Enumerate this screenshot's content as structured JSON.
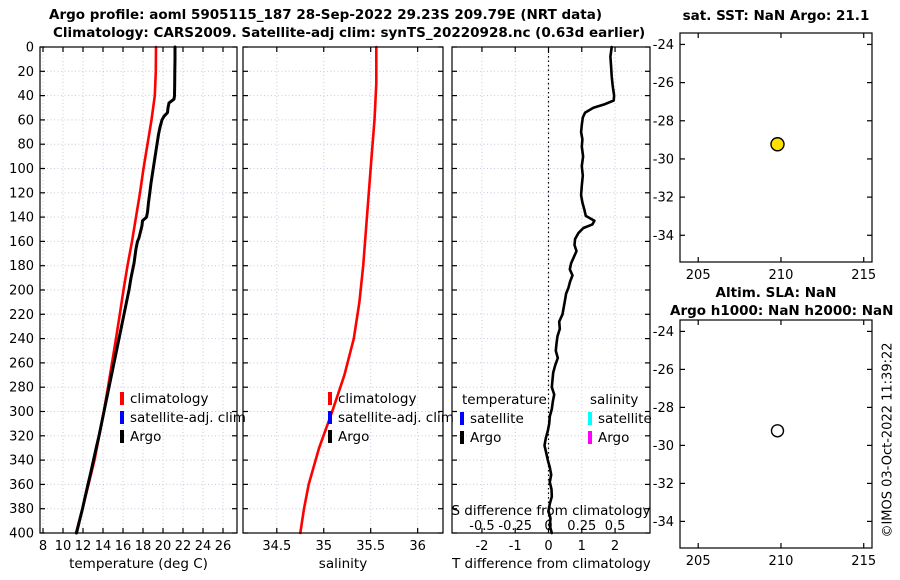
{
  "header": {
    "line1": "Argo profile: aoml 5905115_187 28-Sep-2022 29.23S 209.79E (NRT data)",
    "line2": "Climatology: CARS2009. Satellite-adj clim: synTS_20220928.nc (0.63d earlier)"
  },
  "watermark": "©IMOS 03-Oct-2022 11:39:22",
  "colors": {
    "climatology": "#ff0000",
    "satellite": "#0000ff",
    "argo": "#000000",
    "satellite_salinity": "#00ffff",
    "argo_salinity": "#ff00ff",
    "grid": "#c8c8dc",
    "sst_marker_fill": "#ffe100",
    "sla_marker_fill": "#ffffff"
  },
  "legends": {
    "profile": {
      "climatology": "climatology",
      "satellite": "satellite-adj. clim",
      "argo": "Argo"
    },
    "difference": {
      "temperature_header": "temperature",
      "salinity_header": "salinity",
      "satellite": "satellite",
      "argo": "Argo"
    }
  },
  "panels": {
    "temperature": {
      "xlabel": "temperature (deg C)"
    },
    "salinity": {
      "xlabel": "salinity"
    },
    "difference": {
      "xlabel": "T difference from climatology",
      "inner_label": "S difference from climatology"
    }
  },
  "maps": {
    "sst": {
      "title": "sat. SST: NaN Argo: 21.1"
    },
    "sla": {
      "title_line1": "Altim. SLA: NaN",
      "title_line2": "Argo h1000: NaN h2000: NaN"
    }
  },
  "chart_data": [
    {
      "id": "temperature_profile",
      "type": "line",
      "xlabel": "temperature (deg C)",
      "ylabel": "depth (dbar)",
      "xlim": [
        7.7,
        27.4
      ],
      "ylim": [
        0,
        400
      ],
      "xticks": [
        8,
        10,
        12,
        14,
        16,
        18,
        20,
        22,
        24,
        26
      ],
      "yticks": [
        0,
        20,
        40,
        60,
        80,
        100,
        120,
        140,
        160,
        180,
        200,
        220,
        240,
        260,
        280,
        300,
        320,
        340,
        360,
        380,
        400
      ],
      "grid": true,
      "series": [
        {
          "id": "climatology-temperature",
          "name": "climatology",
          "color": "#ff0000",
          "width": 2.6,
          "points": [
            [
              0,
              19.3
            ],
            [
              20,
              19.28
            ],
            [
              40,
              19.18
            ],
            [
              60,
              18.85
            ],
            [
              80,
              18.45
            ],
            [
              100,
              18.05
            ],
            [
              120,
              17.7
            ],
            [
              140,
              17.3
            ],
            [
              160,
              16.9
            ],
            [
              180,
              16.45
            ],
            [
              200,
              16.05
            ],
            [
              220,
              15.68
            ],
            [
              240,
              15.3
            ],
            [
              260,
              14.9
            ],
            [
              280,
              14.5
            ],
            [
              300,
              14.08
            ],
            [
              320,
              13.62
            ],
            [
              340,
              13.15
            ],
            [
              360,
              12.55
            ],
            [
              380,
              11.95
            ],
            [
              400,
              11.3
            ]
          ]
        },
        {
          "id": "argo-temperature",
          "name": "Argo",
          "color": "#000000",
          "width": 3,
          "points": [
            [
              0,
              21.2
            ],
            [
              10,
              21.2
            ],
            [
              20,
              21.18
            ],
            [
              30,
              21.17
            ],
            [
              40,
              21.15
            ],
            [
              43,
              21.1
            ],
            [
              46,
              20.6
            ],
            [
              50,
              20.5
            ],
            [
              54,
              20.45
            ],
            [
              57,
              20.1
            ],
            [
              60,
              19.9
            ],
            [
              66,
              19.7
            ],
            [
              72,
              19.55
            ],
            [
              80,
              19.4
            ],
            [
              88,
              19.25
            ],
            [
              96,
              19.1
            ],
            [
              104,
              18.95
            ],
            [
              112,
              18.8
            ],
            [
              120,
              18.68
            ],
            [
              128,
              18.55
            ],
            [
              136,
              18.45
            ],
            [
              140,
              18.35
            ],
            [
              143,
              17.95
            ],
            [
              147,
              17.9
            ],
            [
              152,
              17.75
            ],
            [
              157,
              17.6
            ],
            [
              160,
              17.45
            ],
            [
              166,
              17.3
            ],
            [
              172,
              17.2
            ],
            [
              178,
              17.1
            ],
            [
              184,
              16.95
            ],
            [
              190,
              16.8
            ],
            [
              196,
              16.68
            ],
            [
              200,
              16.6
            ],
            [
              210,
              16.35
            ],
            [
              220,
              16.1
            ],
            [
              230,
              15.85
            ],
            [
              240,
              15.6
            ],
            [
              250,
              15.35
            ],
            [
              260,
              15.1
            ],
            [
              270,
              14.85
            ],
            [
              280,
              14.6
            ],
            [
              290,
              14.35
            ],
            [
              300,
              14.1
            ],
            [
              310,
              13.85
            ],
            [
              320,
              13.6
            ],
            [
              330,
              13.32
            ],
            [
              340,
              13.05
            ],
            [
              350,
              12.78
            ],
            [
              360,
              12.5
            ],
            [
              370,
              12.22
            ],
            [
              380,
              11.95
            ],
            [
              390,
              11.65
            ],
            [
              400,
              11.35
            ]
          ]
        }
      ]
    },
    {
      "id": "salinity_profile",
      "type": "line",
      "xlabel": "salinity",
      "ylabel": "depth (dbar)",
      "xlim": [
        34.14,
        36.27
      ],
      "ylim": [
        0,
        400
      ],
      "xticks": [
        34.5,
        35,
        35.5,
        36
      ],
      "xtick_labels": [
        "34.5",
        "35",
        "35.5",
        "36"
      ],
      "yticks": [
        0,
        20,
        40,
        60,
        80,
        100,
        120,
        140,
        160,
        180,
        200,
        220,
        240,
        260,
        280,
        300,
        320,
        340,
        360,
        380,
        400
      ],
      "grid": true,
      "series": [
        {
          "id": "climatology-salinity",
          "name": "climatology",
          "color": "#ff0000",
          "width": 2.6,
          "points": [
            [
              0,
              35.56
            ],
            [
              30,
              35.56
            ],
            [
              60,
              35.54
            ],
            [
              90,
              35.51
            ],
            [
              120,
              35.48
            ],
            [
              150,
              35.45
            ],
            [
              180,
              35.42
            ],
            [
              210,
              35.38
            ],
            [
              240,
              35.32
            ],
            [
              270,
              35.22
            ],
            [
              300,
              35.09
            ],
            [
              330,
              34.95
            ],
            [
              360,
              34.84
            ],
            [
              380,
              34.79
            ],
            [
              400,
              34.75
            ]
          ]
        }
      ]
    },
    {
      "id": "t_difference",
      "type": "line",
      "xlabel": "T difference from climatology",
      "ylabel": "depth (dbar)",
      "xlim": [
        -2.9,
        3.05
      ],
      "ylim": [
        0,
        400
      ],
      "xticks": [
        -2,
        -1,
        0,
        1,
        2
      ],
      "yticks": [
        0,
        20,
        40,
        60,
        80,
        100,
        120,
        140,
        160,
        180,
        200,
        220,
        240,
        260,
        280,
        300,
        320,
        340,
        360,
        380,
        400
      ],
      "grid": true,
      "zero_line": true,
      "secondary_axis": {
        "label": "S difference from climatology",
        "positions": [
          -2,
          -1,
          0,
          1,
          2
        ],
        "labels": [
          "-0.5",
          "-0.25",
          "0",
          "0.25",
          "0.5"
        ]
      },
      "series": [
        {
          "id": "argo-t-difference",
          "name": "Argo T diff",
          "color": "#000000",
          "width": 2.6,
          "points": [
            [
              0,
              1.9
            ],
            [
              8,
              1.86
            ],
            [
              16,
              1.88
            ],
            [
              24,
              1.9
            ],
            [
              32,
              1.93
            ],
            [
              40,
              1.97
            ],
            [
              44,
              1.96
            ],
            [
              47,
              1.7
            ],
            [
              50,
              1.35
            ],
            [
              54,
              1.1
            ],
            [
              58,
              1.03
            ],
            [
              64,
              1.0
            ],
            [
              70,
              0.98
            ],
            [
              76,
              1.02
            ],
            [
              82,
              1.0
            ],
            [
              90,
              1.04
            ],
            [
              98,
              1.0
            ],
            [
              106,
              1.03
            ],
            [
              114,
              1.0
            ],
            [
              122,
              0.98
            ],
            [
              128,
              1.02
            ],
            [
              134,
              1.08
            ],
            [
              139,
              1.12
            ],
            [
              143,
              1.38
            ],
            [
              146,
              1.32
            ],
            [
              149,
              1.05
            ],
            [
              153,
              0.9
            ],
            [
              158,
              0.8
            ],
            [
              163,
              0.78
            ],
            [
              168,
              0.84
            ],
            [
              173,
              0.76
            ],
            [
              178,
              0.68
            ],
            [
              183,
              0.64
            ],
            [
              188,
              0.72
            ],
            [
              193,
              0.65
            ],
            [
              198,
              0.6
            ],
            [
              203,
              0.53
            ],
            [
              208,
              0.5
            ],
            [
              214,
              0.46
            ],
            [
              220,
              0.42
            ],
            [
              226,
              0.32
            ],
            [
              232,
              0.34
            ],
            [
              238,
              0.27
            ],
            [
              244,
              0.24
            ],
            [
              250,
              0.22
            ],
            [
              256,
              0.28
            ],
            [
              262,
              0.2
            ],
            [
              268,
              0.14
            ],
            [
              274,
              0.12
            ],
            [
              280,
              0.1
            ],
            [
              286,
              0.17
            ],
            [
              292,
              0.13
            ],
            [
              298,
              0.1
            ],
            [
              304,
              0.04
            ],
            [
              310,
              0.02
            ],
            [
              316,
              -0.02
            ],
            [
              322,
              -0.08
            ],
            [
              328,
              -0.12
            ],
            [
              334,
              -0.07
            ],
            [
              340,
              -0.02
            ],
            [
              346,
              0.04
            ],
            [
              352,
              0.08
            ],
            [
              358,
              0.04
            ],
            [
              364,
              0.09
            ],
            [
              370,
              0.1
            ],
            [
              376,
              0.04
            ],
            [
              382,
              0.0
            ],
            [
              388,
              0.06
            ],
            [
              394,
              0.04
            ],
            [
              400,
              0.1
            ]
          ]
        }
      ]
    },
    {
      "id": "map_sst",
      "type": "scatter",
      "title": "sat. SST: NaN Argo: 21.1",
      "xlim": [
        203.9,
        215.5
      ],
      "ylim": [
        -23.4,
        -35.4
      ],
      "xticks": [
        205,
        210,
        215
      ],
      "yticks": [
        -24,
        -26,
        -28,
        -30,
        -32,
        -34
      ],
      "grid": false,
      "marker": {
        "x": 209.79,
        "y": -29.23,
        "fill": "#ffe100",
        "r": 6.5
      }
    },
    {
      "id": "map_sla",
      "type": "scatter",
      "title": "Altim. SLA: NaN Argo h1000: NaN h2000: NaN",
      "xlim": [
        203.9,
        215.5
      ],
      "ylim": [
        -23.4,
        -35.4
      ],
      "xticks": [
        205,
        210,
        215
      ],
      "yticks": [
        -24,
        -26,
        -28,
        -30,
        -32,
        -34
      ],
      "grid": false,
      "marker": {
        "x": 209.79,
        "y": -29.23,
        "fill": "#ffffff",
        "r": 6
      }
    }
  ]
}
